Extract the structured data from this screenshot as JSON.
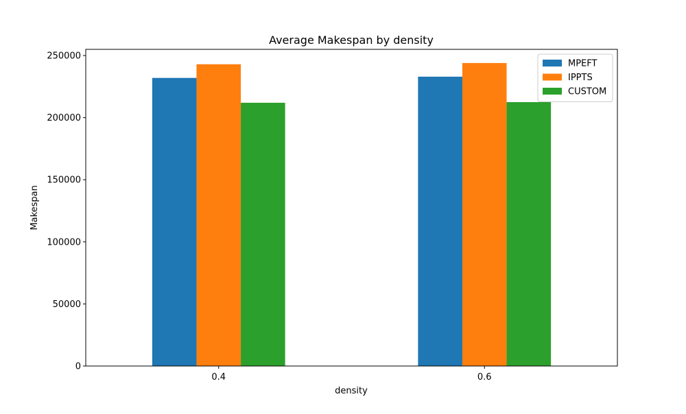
{
  "chart_data": {
    "type": "bar",
    "title": "Average Makespan by density",
    "xlabel": "density",
    "ylabel": "Makespan",
    "categories": [
      "0.4",
      "0.6"
    ],
    "series": [
      {
        "name": "MPEFT",
        "color": "#1f77b4",
        "values": [
          232000,
          233000
        ]
      },
      {
        "name": "IPPTS",
        "color": "#ff7f0e",
        "values": [
          243000,
          244000
        ]
      },
      {
        "name": "CUSTOM",
        "color": "#2ca02c",
        "values": [
          212000,
          212500
        ]
      }
    ],
    "ylim": [
      0,
      255000
    ],
    "yticks": [
      0,
      50000,
      100000,
      150000,
      200000,
      250000
    ],
    "legend_position": "top-right",
    "grid": false
  }
}
